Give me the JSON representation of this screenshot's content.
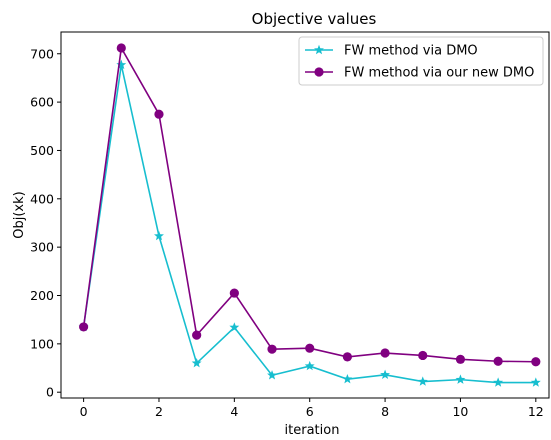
{
  "chart_data": {
    "type": "line",
    "title": "Objective values",
    "xlabel": "iteration",
    "ylabel": "Obj(xk)",
    "xlim": [
      -0.6,
      12.35
    ],
    "ylim": [
      -12,
      745
    ],
    "xticks": [
      0,
      2,
      4,
      6,
      8,
      10,
      12
    ],
    "yticks": [
      0,
      100,
      200,
      300,
      400,
      500,
      600,
      700
    ],
    "grid": false,
    "legend_position": "top-right",
    "x": [
      0,
      1,
      2,
      3,
      4,
      5,
      6,
      7,
      8,
      9,
      10,
      11,
      12
    ],
    "series": [
      {
        "name": "FW method via DMO",
        "color": "#17becf",
        "marker": "star",
        "values": [
          135,
          677,
          323,
          60,
          134,
          35,
          54,
          27,
          36,
          22,
          26,
          20,
          20
        ]
      },
      {
        "name": "FW method via our new DMO",
        "color": "#800080",
        "marker": "circle",
        "values": [
          135,
          712,
          575,
          118,
          205,
          89,
          91,
          73,
          81,
          76,
          68,
          64,
          63
        ]
      }
    ]
  }
}
